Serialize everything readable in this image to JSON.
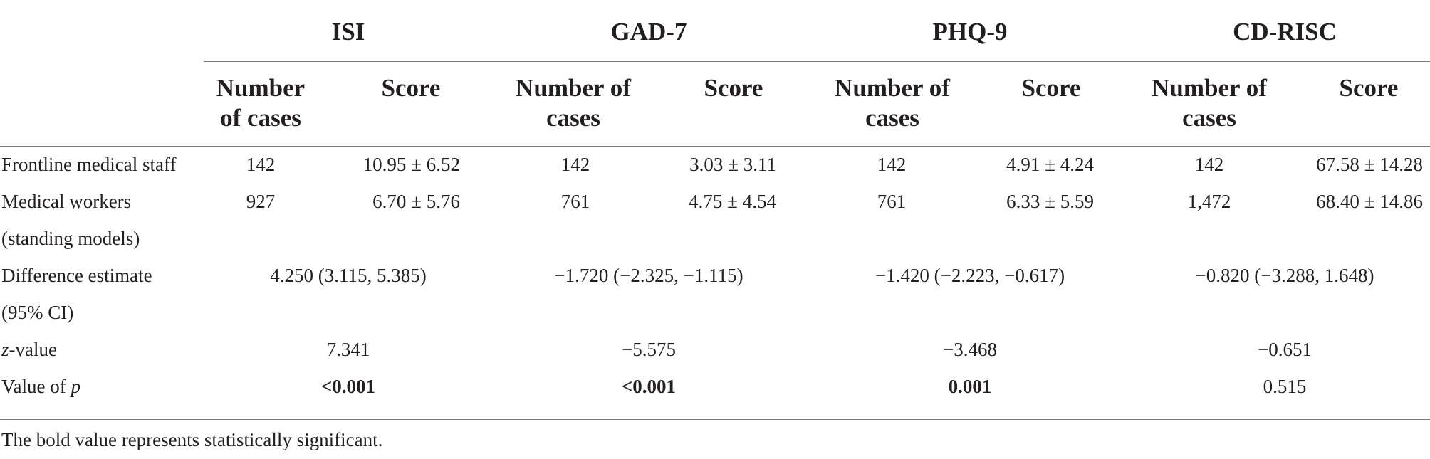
{
  "table": {
    "groups": [
      {
        "label": "ISI",
        "key": "isi"
      },
      {
        "label": "GAD-7",
        "key": "gad7"
      },
      {
        "label": "PHQ-9",
        "key": "phq9"
      },
      {
        "label": "CD-RISC",
        "key": "cdrisc"
      }
    ],
    "subheaders": {
      "isi_cases": "Number of cases",
      "isi_score": "Score",
      "gad7_cases": "Number of cases",
      "gad7_score": "Score",
      "phq9_cases": "Number of cases",
      "phq9_score": "Score",
      "cdrisc_cases": "Number of cases",
      "cdrisc_score": "Score"
    },
    "rows": {
      "frontline": {
        "label": "Frontline medical staff",
        "isi_cases": "142",
        "isi_score": "10.95 ± 6.52",
        "gad7_cases": "142",
        "gad7_score": "3.03 ± 3.11",
        "phq9_cases": "142",
        "phq9_score": "4.91 ± 4.24",
        "cdrisc_cases": "142",
        "cdrisc_score": "67.58 ± 14.28"
      },
      "workers": {
        "label_line1": "Medical workers",
        "label_line2": "(standing models)",
        "isi_cases": "927",
        "isi_score": "6.70 ± 5.76",
        "gad7_cases": "761",
        "gad7_score": "4.75 ± 4.54",
        "phq9_cases": "761",
        "phq9_score": "6.33 ± 5.59",
        "cdrisc_cases": "1,472",
        "cdrisc_score": "68.40 ± 14.86"
      },
      "difference": {
        "label_line1": "Difference estimate",
        "label_line2": "(95% CI)",
        "isi": "4.250 (3.115, 5.385)",
        "gad7": "−1.720 (−2.325, −1.115)",
        "phq9": "−1.420 (−2.223, −0.617)",
        "cdrisc": "−0.820 (−3.288, 1.648)"
      },
      "z": {
        "label_italic": "z",
        "label_rest": "-value",
        "isi": "7.341",
        "gad7": "−5.575",
        "phq9": "−3.468",
        "cdrisc": "−0.651"
      },
      "p": {
        "label_prefix": "Value of ",
        "label_italic": "p",
        "isi": "<0.001",
        "gad7": "<0.001",
        "phq9": "0.001",
        "cdrisc": "0.515"
      }
    },
    "footnote": "The bold value represents statistically significant."
  }
}
